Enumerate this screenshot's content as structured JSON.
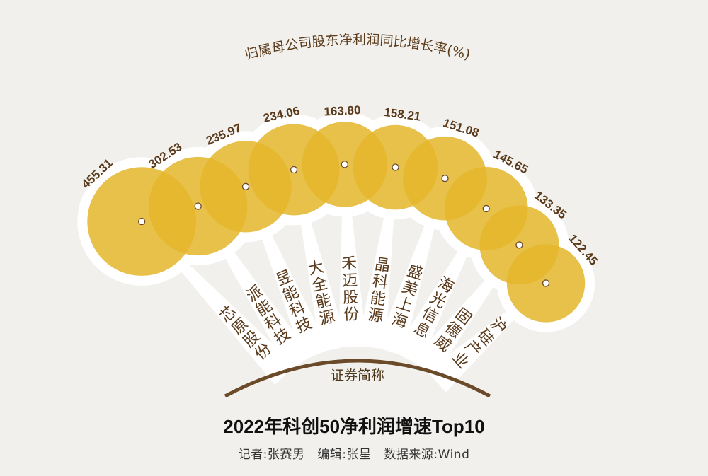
{
  "chart_data": {
    "type": "bubble-fan",
    "title": "2022年科创50净利润增速Top10",
    "subtitle": "归属母公司股东净利润同比增长率(%)",
    "xlabel": "证券简称",
    "credits": {
      "reporter": "记者:张赛男",
      "editor": "编辑:张星",
      "source": "数据来源:Wind"
    },
    "categories": [
      "芯原股份",
      "派能科技",
      "昱能科技",
      "大全能源",
      "禾迈股份",
      "晶科能源",
      "盛美上海",
      "海光信息",
      "固德威",
      "沪硅产业"
    ],
    "values": [
      455.31,
      302.53,
      235.97,
      234.06,
      163.8,
      158.21,
      151.08,
      145.65,
      133.35,
      122.45
    ],
    "value_labels": [
      "455.31",
      "302.53",
      "235.97",
      "234.06",
      "163.80",
      "158.21",
      "151.08",
      "145.65",
      "133.35",
      "122.45"
    ],
    "colors": {
      "bubble": "#e4b62a",
      "background": "#f1f0ec",
      "spoke": "#ffffff",
      "arc": "#6b4a2a",
      "text": "#5a3a1a"
    }
  }
}
